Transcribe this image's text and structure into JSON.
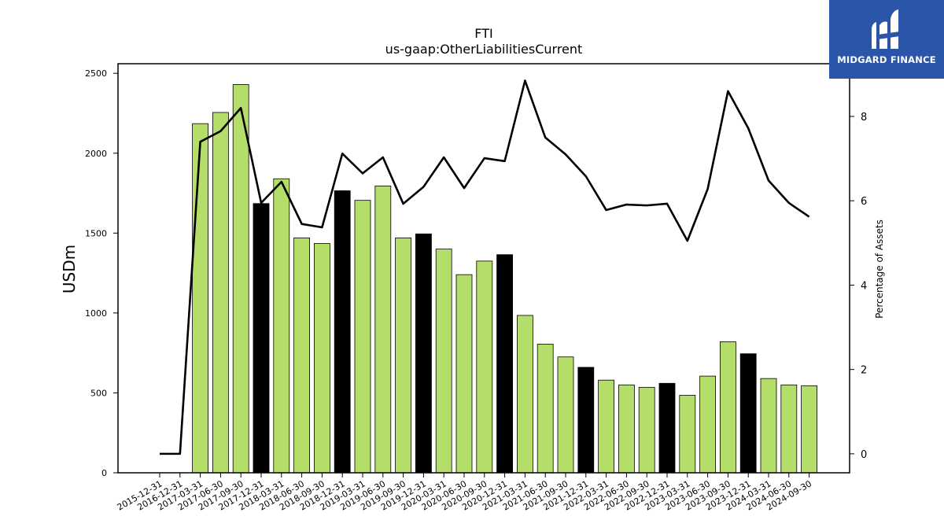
{
  "chart_data": {
    "type": "bar",
    "title": "FTI",
    "subtitle": "us-gaap:OtherLiabilitiesCurrent",
    "ylabel": "USDm",
    "ylabel_right": "Percentage of Assets",
    "ylim": [
      0,
      2560
    ],
    "ylim_right": [
      -0.45,
      9.25
    ],
    "yticks": [
      0,
      500,
      1000,
      1500,
      2000,
      2500
    ],
    "yticks_right": [
      0,
      2,
      4,
      6,
      8
    ],
    "categories": [
      "2015-12-31",
      "2016-12-31",
      "2017-03-31",
      "2017-06-30",
      "2017-09-30",
      "2017-12-31",
      "2018-03-31",
      "2018-06-30",
      "2018-09-30",
      "2018-12-31",
      "2019-03-31",
      "2019-06-30",
      "2019-09-30",
      "2019-12-31",
      "2020-03-31",
      "2020-06-30",
      "2020-09-30",
      "2020-12-31",
      "2021-03-31",
      "2021-06-30",
      "2021-09-30",
      "2021-12-31",
      "2022-03-31",
      "2022-06-30",
      "2022-09-30",
      "2022-12-31",
      "2023-03-31",
      "2023-06-30",
      "2023-09-30",
      "2023-12-31",
      "2024-03-31",
      "2024-06-30",
      "2024-09-30"
    ],
    "series": [
      {
        "kind": "bar",
        "values": [
          0,
          0,
          2185,
          2255,
          2430,
          1685,
          1840,
          1470,
          1435,
          1765,
          1705,
          1795,
          1470,
          1495,
          1400,
          1240,
          1325,
          1365,
          985,
          805,
          725,
          660,
          580,
          550,
          535,
          560,
          485,
          605,
          820,
          745,
          590,
          550,
          545
        ],
        "year_end": [
          true,
          true,
          false,
          false,
          false,
          true,
          false,
          false,
          false,
          true,
          false,
          false,
          false,
          true,
          false,
          false,
          false,
          true,
          false,
          false,
          false,
          true,
          false,
          false,
          false,
          true,
          false,
          false,
          false,
          true,
          false,
          false,
          false
        ]
      },
      {
        "kind": "line",
        "axis": "right",
        "values": [
          0.0,
          0.0,
          7.4,
          7.65,
          8.2,
          5.95,
          6.45,
          5.45,
          5.37,
          7.12,
          6.65,
          7.03,
          5.93,
          6.33,
          7.03,
          6.3,
          7.01,
          6.94,
          8.85,
          7.5,
          7.1,
          6.58,
          5.78,
          5.91,
          5.89,
          5.93,
          5.05,
          6.28,
          8.6,
          7.72,
          6.48,
          5.95,
          5.62
        ]
      }
    ],
    "colors": {
      "bar": "#b5dd6a",
      "bar_year_end": "#000000",
      "line": "#000000"
    }
  },
  "logo": {
    "text": "MIDGARD FINANCE",
    "bg": "#2b55a8"
  }
}
